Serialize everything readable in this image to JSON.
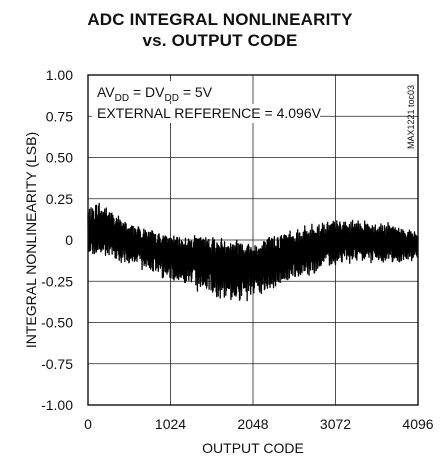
{
  "chart_data": {
    "type": "line",
    "title": "ADC INTEGRAL NONLINEARITY",
    "subtitle": "vs. OUTPUT CODE",
    "xlabel": "OUTPUT CODE",
    "ylabel": "INTEGRAL NONLINEARITY (LSB)",
    "xlim": [
      0,
      4096
    ],
    "ylim": [
      -1.0,
      1.0
    ],
    "x_ticks": [
      "0",
      "1024",
      "2048",
      "3072",
      "4096"
    ],
    "x_tick_values": [
      0,
      1024,
      2048,
      3072,
      4096
    ],
    "y_ticks": [
      "1.00",
      "0.75",
      "0.50",
      "0.25",
      "0",
      "-0.25",
      "-0.50",
      "-0.75",
      "-1.00"
    ],
    "y_tick_values": [
      1.0,
      0.75,
      0.5,
      0.25,
      0,
      -0.25,
      -0.5,
      -0.75,
      -1.0
    ],
    "grid": true,
    "annotations": {
      "line1_prefix": "AV",
      "line1_sub1": "DD",
      "line1_mid": " = DV",
      "line1_sub2": "DD",
      "line1_suffix": " = 5V",
      "line2": "EXTERNAL REFERENCE = 4.096V",
      "figure_code": "MAX1221 toc03"
    },
    "series": [
      {
        "line_color": "#000000",
        "x": [
          0,
          128,
          256,
          384,
          512,
          640,
          768,
          896,
          1024,
          1152,
          1280,
          1408,
          1536,
          1664,
          1792,
          1920,
          2048,
          2176,
          2304,
          2432,
          2560,
          2688,
          2816,
          2944,
          3072,
          3200,
          3328,
          3456,
          3584,
          3712,
          3840,
          3968,
          4096
        ],
        "center": [
          0.02,
          0.05,
          0.04,
          0.03,
          0.0,
          -0.03,
          -0.05,
          -0.06,
          -0.08,
          -0.09,
          -0.1,
          -0.11,
          -0.13,
          -0.14,
          -0.15,
          -0.15,
          -0.16,
          -0.15,
          -0.13,
          -0.1,
          -0.08,
          -0.06,
          -0.04,
          -0.02,
          -0.01,
          0.0,
          0.0,
          0.0,
          -0.01,
          -0.01,
          -0.02,
          -0.02,
          -0.02
        ],
        "upper": [
          0.24,
          0.28,
          0.22,
          0.16,
          0.12,
          0.1,
          0.08,
          0.06,
          0.04,
          0.04,
          0.05,
          0.05,
          0.06,
          0.03,
          0.05,
          0.04,
          0.0,
          0.02,
          0.08,
          0.08,
          0.1,
          0.1,
          0.12,
          0.14,
          0.15,
          0.13,
          0.14,
          0.14,
          0.12,
          0.12,
          0.1,
          0.08,
          0.05
        ],
        "lower": [
          -0.1,
          -0.12,
          -0.14,
          -0.16,
          -0.18,
          -0.2,
          -0.22,
          -0.25,
          -0.28,
          -0.3,
          -0.32,
          -0.35,
          -0.38,
          -0.4,
          -0.41,
          -0.42,
          -0.38,
          -0.36,
          -0.33,
          -0.28,
          -0.26,
          -0.24,
          -0.22,
          -0.2,
          -0.18,
          -0.16,
          -0.16,
          -0.15,
          -0.16,
          -0.15,
          -0.16,
          -0.14,
          -0.14
        ]
      }
    ]
  }
}
